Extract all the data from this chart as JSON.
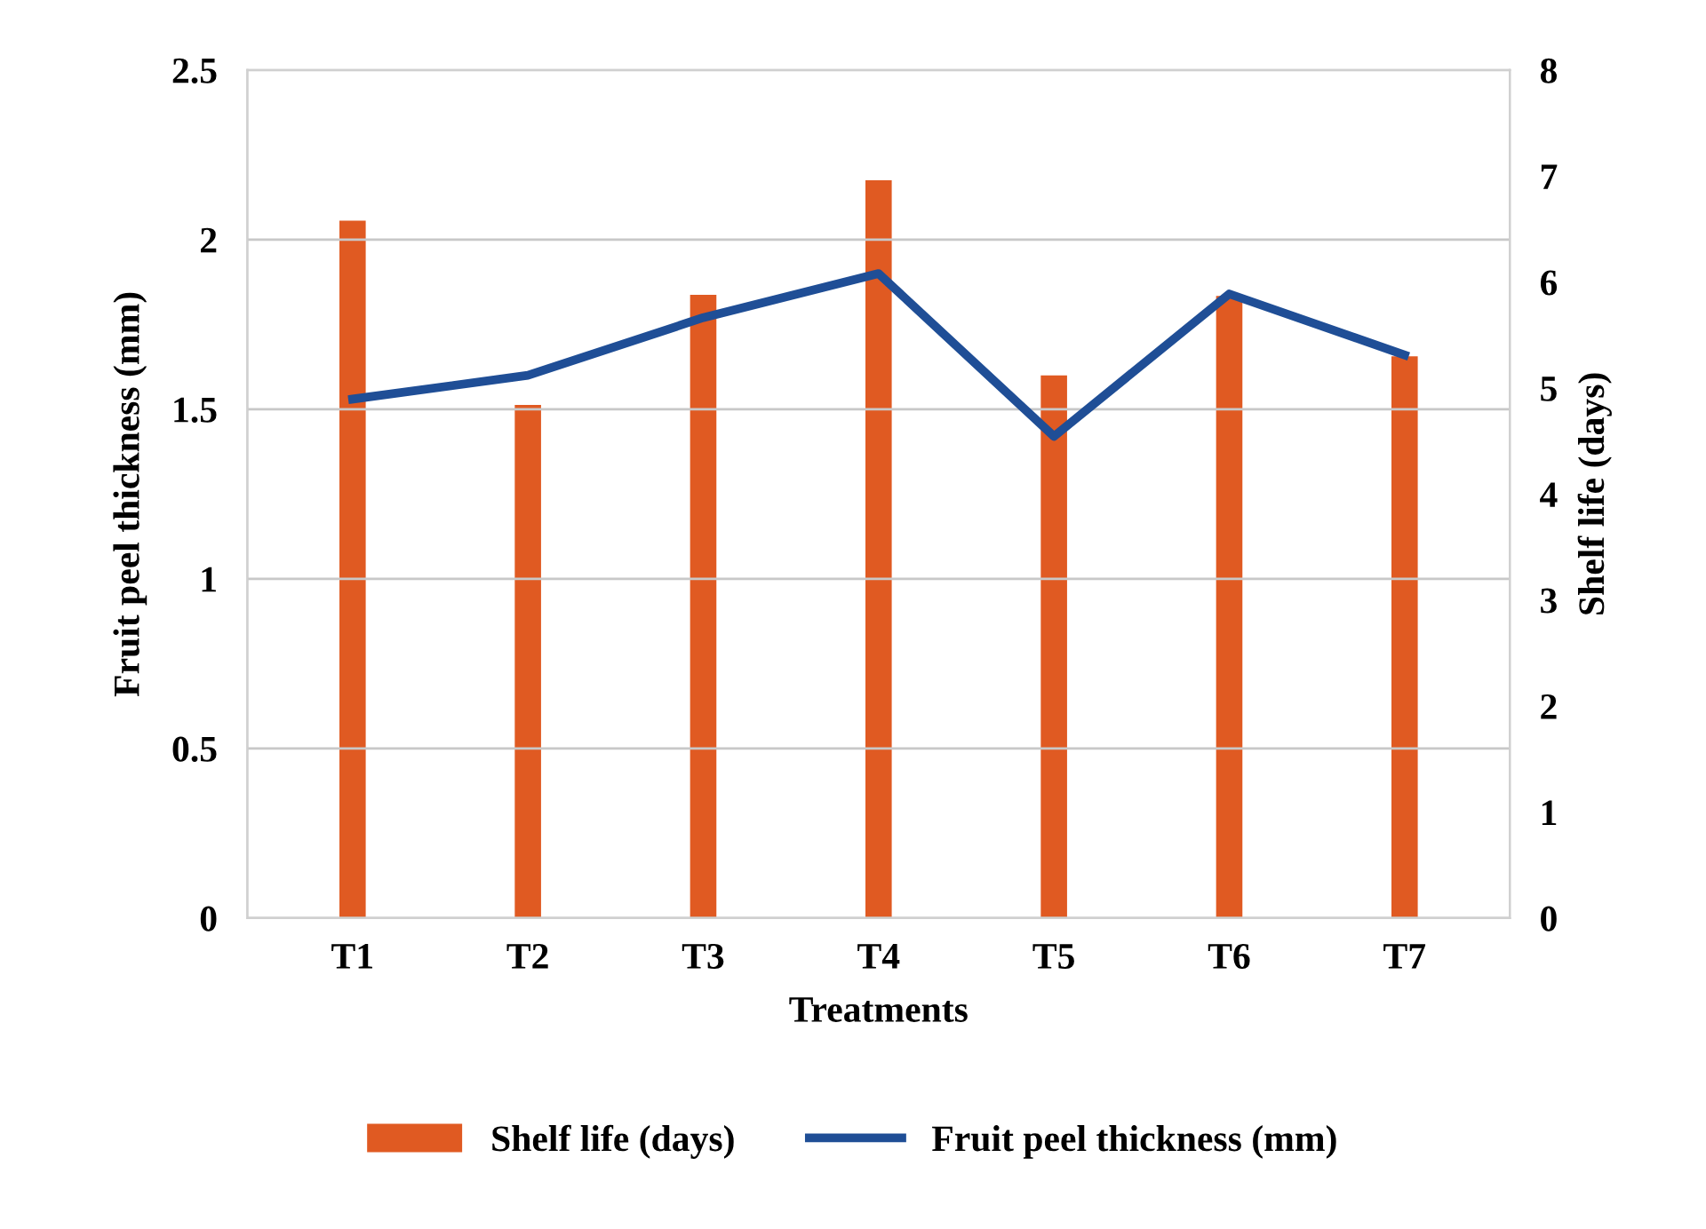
{
  "chart_data": {
    "type": "bar",
    "xlabel": "Treatments",
    "ylabel": "Fruit peel thickness (mm)",
    "y2label": "Shelf life (days)",
    "categories": [
      "T1",
      "T2",
      "T3",
      "T4",
      "T5",
      "T6",
      "T7"
    ],
    "series": [
      {
        "name": "Shelf life (days)",
        "axis": "y2",
        "color": "#e05a22",
        "values": [
          6.58,
          4.84,
          5.88,
          6.96,
          5.12,
          5.87,
          5.3
        ]
      },
      {
        "name": "Fruit peel thickness (mm)",
        "type": "line",
        "color": "#1f4e96",
        "values": [
          1.53,
          1.6,
          1.77,
          1.9,
          1.42,
          1.84,
          1.66
        ]
      }
    ],
    "ylim": [
      0,
      2.5
    ],
    "yticks": [
      0,
      0.5,
      1,
      1.5,
      2,
      2.5
    ],
    "y2lim": [
      0,
      8
    ],
    "y2ticks": [
      0,
      1,
      2,
      3,
      4,
      5,
      6,
      7,
      8
    ],
    "grid": "y",
    "legend": "bottom",
    "marker": "none",
    "line_style": "solid"
  }
}
